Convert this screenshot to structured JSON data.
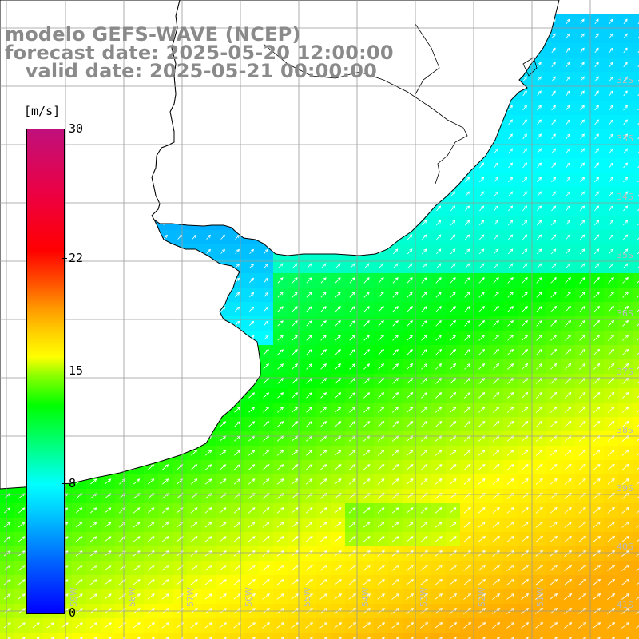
{
  "title": {
    "line1": "modelo GEFS-WAVE (NCEP)",
    "line2": "forecast date: 2025-05-20 12:00:00",
    "line3": "   valid date: 2025-05-21 00:00:00"
  },
  "colorbar": {
    "unit": "[m/s]",
    "ticks": [
      {
        "label": "30",
        "value": 30
      },
      {
        "label": "22",
        "value": 22
      },
      {
        "label": "15",
        "value": 15
      },
      {
        "label": "8",
        "value": 8
      },
      {
        "label": "0",
        "value": 0
      }
    ]
  },
  "map": {
    "lat_labels": [
      "32S",
      "33S",
      "34S",
      "35S",
      "36S",
      "37S",
      "38S",
      "39S",
      "40S",
      "41S"
    ],
    "lon_labels": [
      "59W",
      "58W",
      "57W",
      "56W",
      "55W",
      "54W",
      "53W",
      "52W",
      "51W"
    ],
    "land_color": "#ffffff",
    "coast_color": "#000000",
    "grid_color": "#999999"
  }
}
